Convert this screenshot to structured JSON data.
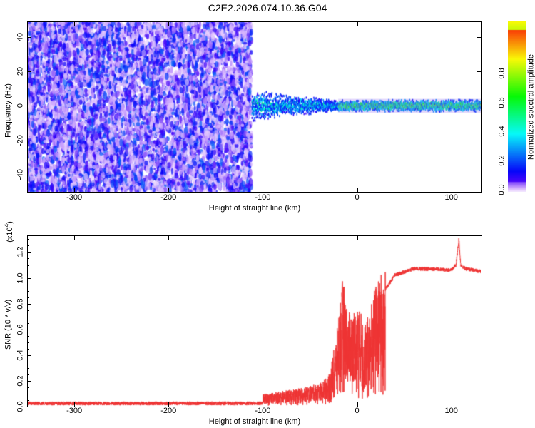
{
  "title": "C2E2.2026.074.10.36.G04",
  "chart_data": [
    {
      "type": "heatmap",
      "name": "spectrogram",
      "xlabel": "Height of straight line (km)",
      "ylabel": "Frequency (Hz)",
      "xlim": [
        -350,
        132
      ],
      "ylim": [
        -50,
        49
      ],
      "xticks": [
        {
          "v": -300,
          "l": "-300"
        },
        {
          "v": -200,
          "l": "-200"
        },
        {
          "v": -100,
          "l": "-100"
        },
        {
          "v": 0,
          "l": "0"
        },
        {
          "v": 100,
          "l": "100"
        }
      ],
      "yticks": [
        {
          "v": 40,
          "l": "40"
        },
        {
          "v": 20,
          "l": "20"
        },
        {
          "v": 0,
          "l": "0"
        },
        {
          "v": -20,
          "l": "-20"
        },
        {
          "v": -40,
          "l": "-40"
        }
      ],
      "noise_region_km": [
        -350,
        -112
      ],
      "signal_region_km": [
        -112,
        132
      ],
      "signal_center_hz": 0,
      "colorbar": {
        "label": "Normalized spectral amplitude",
        "range": [
          0,
          1
        ],
        "ticks": [
          {
            "v": 0,
            "l": "0.0"
          },
          {
            "v": 0.2,
            "l": "0.2"
          },
          {
            "v": 0.4,
            "l": "0.4"
          },
          {
            "v": 0.6,
            "l": "0.6"
          },
          {
            "v": 0.8,
            "l": "0.8"
          }
        ]
      }
    },
    {
      "type": "line",
      "name": "snr",
      "xlabel": "Height of straight line (km)",
      "ylabel": "SNR (10 * v/v)",
      "yscale_label": "(x10",
      "yscale_exp": "4",
      "xlim": [
        -350,
        132
      ],
      "ylim": [
        0,
        1.33
      ],
      "xticks": [
        {
          "v": -300,
          "l": "-300"
        },
        {
          "v": -200,
          "l": "-200"
        },
        {
          "v": -100,
          "l": "-100"
        },
        {
          "v": 0,
          "l": "0"
        },
        {
          "v": 100,
          "l": "100"
        }
      ],
      "yticks": [
        {
          "v": 0,
          "l": "0.0"
        },
        {
          "v": 0.2,
          "l": "0.2"
        },
        {
          "v": 0.4,
          "l": "0.4"
        },
        {
          "v": 0.6,
          "l": "0.6"
        },
        {
          "v": 0.8,
          "l": "0.8"
        },
        {
          "v": 1.0,
          "l": "1.0"
        },
        {
          "v": 1.2,
          "l": "1.2"
        }
      ],
      "color": "#ee3333",
      "envelope": {
        "x": [
          -350,
          -110,
          -100,
          -60,
          -40,
          -30,
          -22,
          -18,
          -15,
          -10,
          0,
          10,
          20,
          40,
          60,
          80,
          100,
          105,
          108,
          110,
          115,
          132
        ],
        "y": [
          0.02,
          0.02,
          0.08,
          0.12,
          0.15,
          0.2,
          0.45,
          0.7,
          0.85,
          0.6,
          0.65,
          0.55,
          0.8,
          1.02,
          1.07,
          1.07,
          1.06,
          1.1,
          1.3,
          1.1,
          1.07,
          1.05
        ]
      }
    }
  ]
}
